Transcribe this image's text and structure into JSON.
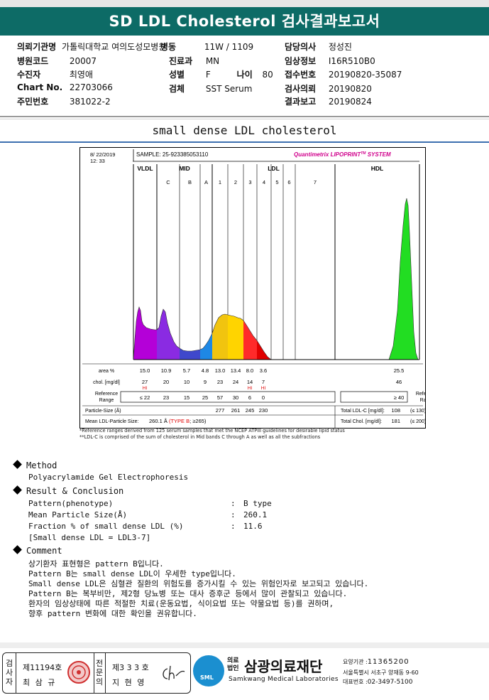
{
  "header": {
    "title": "SD LDL Cholesterol 검사결과보고서"
  },
  "info": {
    "hospital_label": "의뢰기관명",
    "hospital_value": "가톨릭대학교 여의도성모병원",
    "code_label": "병원코드",
    "code_value": "20007",
    "patient_label": "수진자",
    "patient_value": "최영애",
    "chart_label": "Chart No.",
    "chart_value": "22703066",
    "id_label": "주민번호",
    "id_value": "381022-2",
    "ward_label": "병동",
    "ward_value": "11W / 1109",
    "dept_label": "진료과",
    "dept_value": "MN",
    "sex_label": "성별",
    "sex_value": "F",
    "age_label": "나이",
    "age_value": "80",
    "specimen_label": "검체",
    "specimen_value": "SST Serum",
    "doctor_label": "담당의사",
    "doctor_value": "정성진",
    "clinical_label": "임상정보",
    "clinical_value": "I16R510B0",
    "receipt_label": "접수번호",
    "receipt_value": "20190820-35087",
    "request_label": "검사의뢰",
    "request_value": "20190820",
    "report_label": "결과보고",
    "report_value": "20190824"
  },
  "subtitle": "small dense LDL cholesterol",
  "chart_data": {
    "type": "area",
    "date": "8/ 22/2019",
    "time": "12: 33",
    "sample": "SAMPLE:   25-923385053110",
    "brand": "Quantimetrix LIPOPRINT",
    "brand_tm": "TM",
    "brand_suffix": " SYSTEM",
    "groups": [
      "VLDL",
      "MID",
      "LDL",
      "HDL"
    ],
    "bands": [
      "C",
      "B",
      "A",
      "1",
      "2",
      "3",
      "4",
      "5",
      "6",
      "7"
    ],
    "row_labels": {
      "area": "area %",
      "chol": "chol. [mg/dl]",
      "ref1": "Reference",
      "ref2": "Range",
      "psize": "Particle-Size (Å)",
      "mean": "Mean LDL-Particle Size:",
      "ldlc": "Total LDL-C [mg/dl]:",
      "tchol": "Total Chol. [mg/dl]:",
      "refr1": "Reference",
      "refr2": "Range"
    },
    "area": {
      "VLDL": "15.0",
      "C": "10.9",
      "B": "5.7",
      "A": "4.8",
      "1": "13.0",
      "2": "13.4",
      "3": "8.0",
      "4": "3.6",
      "HDL": "25.5"
    },
    "chol": {
      "VLDL": "27",
      "C": "20",
      "B": "10",
      "A": "9",
      "1": "23",
      "2": "24",
      "3": "14",
      "4": "7",
      "HDL": "46"
    },
    "hi": "HI",
    "ref": {
      "VLDL": "≤  22",
      "C": "23",
      "B": "15",
      "A": "25",
      "1": "57",
      "2": "30",
      "3": "6",
      "4": "0",
      "HDL": "≥  40"
    },
    "psize": {
      "1": "277",
      "2": "261",
      "3": "245",
      "4": "230"
    },
    "mean_value": "260.1 Å",
    "mean_type": "(TYPE B",
    "mean_limit": "; ≥265)",
    "ldlc_value": "108",
    "ldlc_ref": "(≤ 130)",
    "tchol_value": "181",
    "tchol_ref": "(≤ 200)",
    "colors": {
      "VLDL": "#b400d8",
      "C": "#8a2be2",
      "B": "#3f48cc",
      "A": "#1e88e5",
      "1": "#f1c40f",
      "2": "#ffd400",
      "3": "#ff2a2a",
      "4": "#e00000",
      "HDL": "#22dd22",
      "hi": "#e00000",
      "brand": "#d0008c"
    }
  },
  "footnotes": [
    "*Reference ranges derived from 125 serum samples that met the NCEP ATPIII guidelines for desirable lipid status",
    "**LDL-C is comprised of the sum of cholesterol in Mid bands C through A as well as all the subfractions"
  ],
  "method": {
    "heading": "Method",
    "text": "Polyacrylamide Gel Electrophoresis"
  },
  "result": {
    "heading": "Result & Conclusion",
    "rows": [
      {
        "label": "Pattern(phenotype)",
        "sep": ":",
        "value": "B type"
      },
      {
        "label": "Mean Particle Size(Å)",
        "sep": ":",
        "value": "260.1"
      },
      {
        "label": "Fraction % of small dense LDL (%)",
        "sep": ":",
        "value": "11.6"
      }
    ],
    "note": "[Small dense LDL = LDL3-7]"
  },
  "comment": {
    "heading": "Comment",
    "lines": [
      "상기환자 표현형은 pattern B입니다.",
      "Pattern B는 small dense LDL이 우세한 type입니다.",
      "Small dense LDL은 심혈관 질환의 위험도를 증가시킬 수 있는 위험인자로 보고되고 있습니다.",
      "Pattern B는 복부비만, 제2형 당뇨병 또는 대사 증후군 등에서 많이 관찰되고 있습니다.",
      "환자의 임상상태에 따른 적절한 치료(운동요법, 식이요법 또는 약물요법 등)를 권하며,",
      "향후 pattern 변화에 대한 확인을 권유합니다."
    ]
  },
  "footer": {
    "tester_label": "검사자",
    "tester_no": "제11194호",
    "tester_name": "최 삼 규",
    "specialist_label": "전문의",
    "specialist_no": "제3 3 3 호",
    "specialist_name": "지 현 영",
    "org_prefix": "의료법인",
    "org_name": "삼광의료재단",
    "org_en": "Samkwang Medical Laboratories",
    "logo_text": "SML",
    "reg_label": "요양기관 :",
    "reg_value": "11365200",
    "address": "서울특별시 서초구 양재동 9-60",
    "phone_label": "대표번호 :",
    "phone_value": "02-3497-5100"
  }
}
